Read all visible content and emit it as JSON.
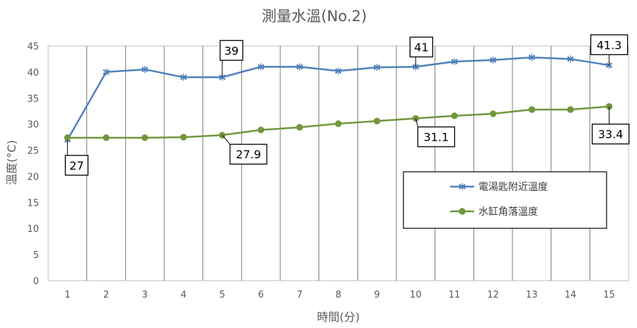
{
  "chart_data": {
    "type": "line",
    "title": "測量水溫(No.2)",
    "xlabel": "時間(分)",
    "ylabel": "溫度(°C)",
    "categories": [
      "1",
      "2",
      "3",
      "4",
      "5",
      "6",
      "7",
      "8",
      "9",
      "10",
      "11",
      "12",
      "13",
      "14",
      "15"
    ],
    "ylim": [
      0,
      45
    ],
    "yticks": [
      0,
      5,
      10,
      15,
      20,
      25,
      30,
      35,
      40,
      45
    ],
    "grid": "vertical",
    "legend_position": "right",
    "series": [
      {
        "name": "電湯匙附近溫度",
        "color": "#4f81bd",
        "marker": "asterisk",
        "values": [
          27,
          40,
          40.5,
          39,
          39,
          41,
          41,
          40.2,
          40.9,
          41,
          42,
          42.3,
          42.8,
          42.5,
          41.3
        ]
      },
      {
        "name": "水缸角落溫度",
        "color": "#70973d",
        "marker": "circle",
        "values": [
          27.4,
          27.4,
          27.4,
          27.5,
          27.9,
          28.9,
          29.4,
          30.1,
          30.6,
          31.1,
          31.6,
          32,
          32.8,
          32.8,
          33.4
        ]
      }
    ],
    "annotations": [
      {
        "series": 0,
        "index": 0,
        "label": "27"
      },
      {
        "series": 0,
        "index": 4,
        "label": "39"
      },
      {
        "series": 0,
        "index": 9,
        "label": "41"
      },
      {
        "series": 0,
        "index": 14,
        "label": "41.3"
      },
      {
        "series": 1,
        "index": 4,
        "label": "27.9"
      },
      {
        "series": 1,
        "index": 9,
        "label": "31.1"
      },
      {
        "series": 1,
        "index": 14,
        "label": "33.4"
      }
    ]
  }
}
